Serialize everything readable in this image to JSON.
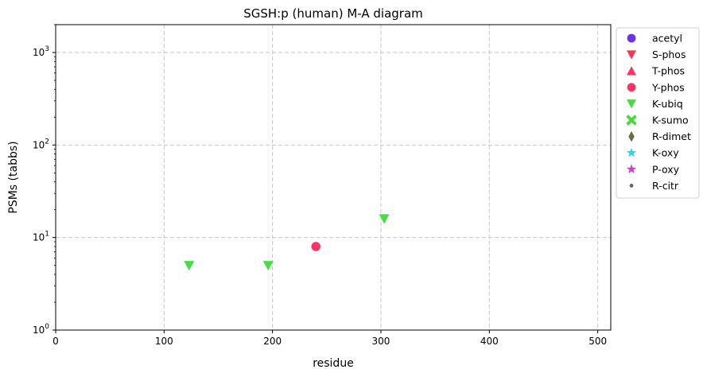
{
  "chart_data": {
    "type": "scatter",
    "title": "SGSH:p (human) M-A diagram",
    "xlabel": "residue",
    "ylabel": "PSMs (tabbs)",
    "xlim": [
      0,
      512
    ],
    "ylim": [
      1,
      2000
    ],
    "yscale": "log",
    "xticks": [
      0,
      100,
      200,
      300,
      400,
      500
    ],
    "yticks": [
      {
        "value": 1,
        "base": "10",
        "exp": "0"
      },
      {
        "value": 10,
        "base": "10",
        "exp": "1"
      },
      {
        "value": 100,
        "base": "10",
        "exp": "2"
      },
      {
        "value": 1000,
        "base": "10",
        "exp": "3"
      }
    ],
    "grid": true,
    "legend_position": "outside-right-top",
    "series": [
      {
        "name": "acetyl",
        "marker": "circle",
        "color": "#6633ee",
        "points": []
      },
      {
        "name": "S-phos",
        "marker": "triangle-down",
        "color": "#ff3355",
        "points": []
      },
      {
        "name": "T-phos",
        "marker": "triangle-up",
        "color": "#ff3366",
        "points": []
      },
      {
        "name": "Y-phos",
        "marker": "circle",
        "color": "#ff3366",
        "points": [
          {
            "x": 240,
            "y": 8
          }
        ]
      },
      {
        "name": "K-ubiq",
        "marker": "triangle-down",
        "color": "#44dd44",
        "points": [
          {
            "x": 123,
            "y": 5
          },
          {
            "x": 196,
            "y": 5
          },
          {
            "x": 303,
            "y": 16
          }
        ]
      },
      {
        "name": "K-sumo",
        "marker": "x-thick",
        "color": "#44dd33",
        "points": []
      },
      {
        "name": "R-dimet",
        "marker": "diamond-thin",
        "color": "#6b6b45",
        "points": []
      },
      {
        "name": "K-oxy",
        "marker": "star",
        "color": "#44ccdd",
        "points": []
      },
      {
        "name": "P-oxy",
        "marker": "star",
        "color": "#cc44cc",
        "points": []
      },
      {
        "name": "R-citr",
        "marker": "dot",
        "color": "#666666",
        "points": []
      }
    ]
  }
}
